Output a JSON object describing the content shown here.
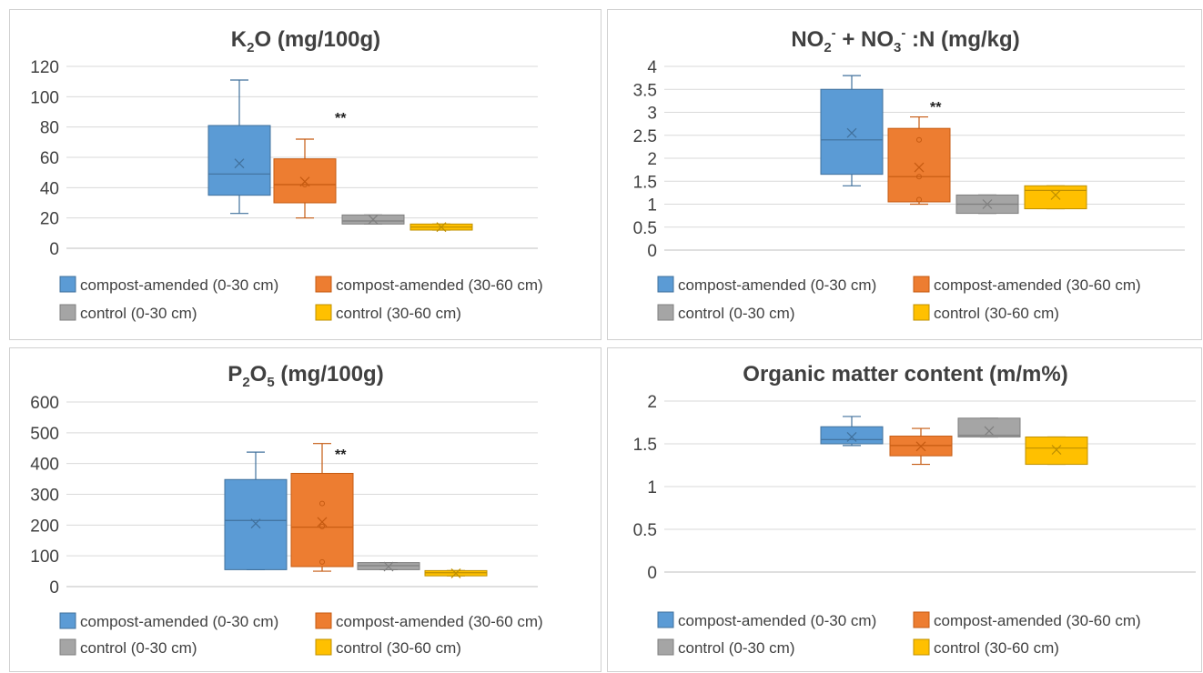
{
  "colors": {
    "blue": "#5b9bd5",
    "blue_edge": "#41719c",
    "orange": "#ed7d31",
    "orange_edge": "#c55a11",
    "gray": "#a5a5a5",
    "gray_edge": "#7f7f7f",
    "yellow": "#ffc000",
    "yellow_edge": "#bf9000",
    "grid": "#d9d9d9",
    "axis": "#bfbfbf",
    "text": "#404040"
  },
  "chart_data": [
    {
      "type": "box",
      "title": {
        "base": "K",
        "sub1": "2",
        "mid": "O (mg/100g)"
      },
      "ylim": [
        0,
        120
      ],
      "yticks": [
        "0",
        "20",
        "40",
        "60",
        "80",
        "100",
        "120"
      ],
      "annotation": "**",
      "legend": [
        "compost-amended (0-30 cm)",
        "compost-amended (30-60 cm)",
        "control (0-30 cm)",
        "control (30-60 cm)"
      ],
      "series": [
        {
          "color": "blue",
          "min": 23,
          "q1": 35,
          "median": 49,
          "q3": 81,
          "max": 111,
          "mean": 56,
          "outliers": []
        },
        {
          "color": "orange",
          "min": 20,
          "q1": 30,
          "median": 42,
          "q3": 59,
          "max": 72,
          "mean": 44,
          "outliers": [
            42
          ]
        },
        {
          "color": "gray",
          "min": 16,
          "q1": 16,
          "median": 18,
          "q3": 22,
          "max": 22,
          "mean": 19,
          "outliers": []
        },
        {
          "color": "yellow",
          "min": 12,
          "q1": 12,
          "median": 14,
          "q3": 16,
          "max": 16,
          "mean": 14,
          "outliers": []
        }
      ]
    },
    {
      "type": "box",
      "title": {
        "base": "NO",
        "sub1": "2",
        "sup1": "-",
        "mid": " + NO",
        "sub2": "3",
        "sup2": "-",
        "tail": " :N (mg/kg)"
      },
      "ylim": [
        0,
        4
      ],
      "yticks": [
        "0",
        "0.5",
        "1",
        "1.5",
        "2",
        "2.5",
        "3",
        "3.5",
        "4"
      ],
      "annotation": "**",
      "legend": [
        "compost-amended (0-30 cm)",
        "compost-amended (30-60 cm)",
        "control (0-30 cm)",
        "control (30-60 cm)"
      ],
      "series": [
        {
          "color": "blue",
          "min": 1.4,
          "q1": 1.65,
          "median": 2.4,
          "q3": 3.5,
          "max": 3.8,
          "mean": 2.55,
          "outliers": []
        },
        {
          "color": "orange",
          "min": 1.0,
          "q1": 1.05,
          "median": 1.6,
          "q3": 2.65,
          "max": 2.9,
          "mean": 1.8,
          "outliers": [
            2.4,
            1.6,
            1.1
          ]
        },
        {
          "color": "gray",
          "min": 0.8,
          "q1": 0.8,
          "median": 1.0,
          "q3": 1.2,
          "max": 1.2,
          "mean": 1.0,
          "outliers": []
        },
        {
          "color": "yellow",
          "min": 0.9,
          "q1": 0.9,
          "median": 1.3,
          "q3": 1.4,
          "max": 1.4,
          "mean": 1.2,
          "outliers": []
        }
      ]
    },
    {
      "type": "box",
      "title": {
        "base": "P",
        "sub1": "2",
        "mid": "O",
        "sub2": "5",
        "tail": " (mg/100g)"
      },
      "ylim": [
        0,
        600
      ],
      "yticks": [
        "0",
        "100",
        "200",
        "300",
        "400",
        "500",
        "600"
      ],
      "annotation": "**",
      "legend": [
        "compost-amended (0-30 cm)",
        "compost-amended (30-60 cm)",
        "control (0-30 cm)",
        "control (30-60 cm)"
      ],
      "series": [
        {
          "color": "blue",
          "min": 55,
          "q1": 55,
          "median": 215,
          "q3": 348,
          "max": 437,
          "mean": 205,
          "outliers": []
        },
        {
          "color": "orange",
          "min": 50,
          "q1": 65,
          "median": 193,
          "q3": 368,
          "max": 465,
          "mean": 210,
          "outliers": [
            270,
            195,
            80
          ]
        },
        {
          "color": "gray",
          "min": 55,
          "q1": 55,
          "median": 68,
          "q3": 78,
          "max": 78,
          "mean": 65,
          "outliers": []
        },
        {
          "color": "yellow",
          "min": 35,
          "q1": 35,
          "median": 45,
          "q3": 52,
          "max": 52,
          "mean": 43,
          "outliers": []
        }
      ]
    },
    {
      "type": "box",
      "title": {
        "base": "Organic matter content (m/m%)"
      },
      "ylim": [
        0,
        2
      ],
      "yticks": [
        "0",
        "0.5",
        "1",
        "1.5",
        "2"
      ],
      "annotation": "",
      "legend": [
        "compost-amended (0-30 cm)",
        "compost-amended (30-60 cm)",
        "control (0-30 cm)",
        "control (30-60 cm)"
      ],
      "series": [
        {
          "color": "blue",
          "min": 1.48,
          "q1": 1.5,
          "median": 1.55,
          "q3": 1.7,
          "max": 1.82,
          "mean": 1.58,
          "outliers": []
        },
        {
          "color": "orange",
          "min": 1.26,
          "q1": 1.36,
          "median": 1.48,
          "q3": 1.59,
          "max": 1.68,
          "mean": 1.47,
          "outliers": []
        },
        {
          "color": "gray",
          "min": 1.58,
          "q1": 1.58,
          "median": 1.6,
          "q3": 1.8,
          "max": 1.8,
          "mean": 1.65,
          "outliers": []
        },
        {
          "color": "yellow",
          "min": 1.26,
          "q1": 1.26,
          "median": 1.45,
          "q3": 1.58,
          "max": 1.58,
          "mean": 1.43,
          "outliers": []
        }
      ]
    }
  ]
}
